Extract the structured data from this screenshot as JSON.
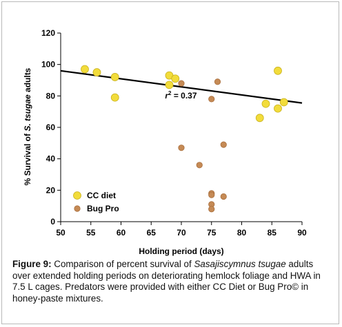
{
  "chart_data": {
    "type": "scatter",
    "xlabel": "Holding period (days)",
    "ylabel_parts": [
      "% Survival of ",
      "S. tsugae",
      " adults"
    ],
    "xlim": [
      50,
      90
    ],
    "ylim": [
      0,
      120
    ],
    "x_ticks": [
      "50",
      "55",
      "60",
      "65",
      "70",
      "75",
      "80",
      "85",
      "90"
    ],
    "y_ticks": [
      "0",
      "20",
      "40",
      "60",
      "80",
      "100",
      "120"
    ],
    "grid": false,
    "legend_position": "bottom-left",
    "series": [
      {
        "name": "CC diet",
        "color": "#f2dc3b",
        "edge": "#c9b21f",
        "points": [
          {
            "x": 54,
            "y": 97
          },
          {
            "x": 56,
            "y": 95
          },
          {
            "x": 59,
            "y": 92
          },
          {
            "x": 59,
            "y": 79
          },
          {
            "x": 68,
            "y": 93
          },
          {
            "x": 68,
            "y": 87
          },
          {
            "x": 69,
            "y": 91
          },
          {
            "x": 83,
            "y": 66
          },
          {
            "x": 84,
            "y": 75
          },
          {
            "x": 86,
            "y": 96
          },
          {
            "x": 86,
            "y": 72
          },
          {
            "x": 87,
            "y": 76
          }
        ]
      },
      {
        "name": "Bug Pro",
        "color": "#c58a55",
        "edge": "#a96f3e",
        "points": [
          {
            "x": 70,
            "y": 88
          },
          {
            "x": 70,
            "y": 47
          },
          {
            "x": 73,
            "y": 36
          },
          {
            "x": 75,
            "y": 78
          },
          {
            "x": 75,
            "y": 18
          },
          {
            "x": 75,
            "y": 17
          },
          {
            "x": 75,
            "y": 11
          },
          {
            "x": 75,
            "y": 8
          },
          {
            "x": 76,
            "y": 89
          },
          {
            "x": 77,
            "y": 49
          },
          {
            "x": 77,
            "y": 16
          }
        ]
      }
    ],
    "trendline": {
      "x0": 50,
      "y0": 96,
      "x1": 90,
      "y1": 75.5,
      "color": "#000000"
    },
    "annotation": {
      "text_base": "r",
      "text_sup": "2",
      "text_rest": " = 0.37",
      "x": 67.3,
      "y": 78.5
    }
  },
  "caption": {
    "lead": "Figure 9:",
    "text1": " Comparison of percent survival of ",
    "species": "Sasajiscymnus tsugae",
    "text2": " adults over extended holding periods on deteriorating hemlock foliage and HWA in 7.5 L cages. Predators were provided with either CC Diet or Bug Pro© in honey-paste mixtures."
  }
}
